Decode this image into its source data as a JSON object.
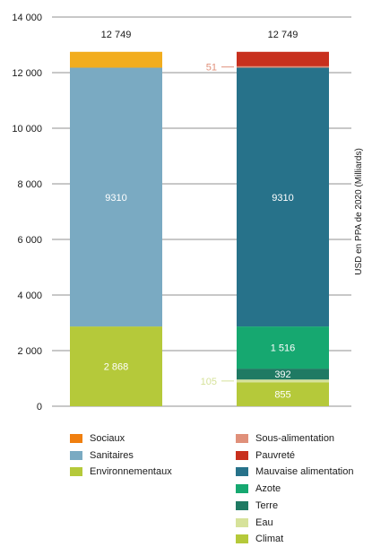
{
  "chart_data": {
    "type": "bar",
    "stacked": true,
    "ylabel": "USD en PPA de 2020 (Milliards)",
    "ylim": [
      0,
      14000
    ],
    "yticks": [
      0,
      2000,
      4000,
      6000,
      8000,
      10000,
      12000,
      14000
    ],
    "ytick_labels": [
      "0",
      "2 000",
      "4 000",
      "6 000",
      "8 000",
      "10 000",
      "12 000",
      "14 000"
    ],
    "grid": "horizontal",
    "legend_position": "bottom",
    "bars": [
      {
        "total_label": "12 749",
        "segments": [
          {
            "name": "Environnementaux",
            "value": 2868,
            "label": "2 868",
            "color": "#b5c93a"
          },
          {
            "name": "Sanitaires",
            "value": 9310,
            "label": "9310",
            "color": "#7aaac2"
          },
          {
            "name": "Sociaux",
            "value": 571,
            "label": "",
            "color": "#f2ad1e"
          }
        ]
      },
      {
        "total_label": "12 749",
        "segments": [
          {
            "name": "Climat",
            "value": 855,
            "label": "855",
            "color": "#b5c93a"
          },
          {
            "name": "Eau",
            "value": 105,
            "label": "105",
            "label_outside": true,
            "color": "#d6e29a"
          },
          {
            "name": "Terre",
            "value": 392,
            "label": "392",
            "color": "#1f7a63"
          },
          {
            "name": "Azote",
            "value": 1516,
            "label": "1 516",
            "color": "#16a870"
          },
          {
            "name": "Mauvaise alimentation",
            "value": 9310,
            "label": "9310",
            "color": "#27728a"
          },
          {
            "name": "Sous-alimentation",
            "value": 51,
            "label": "51",
            "label_outside": true,
            "color": "#e0907a"
          },
          {
            "name": "Pauvreté",
            "value": 520,
            "label": "",
            "color": "#c8301e"
          }
        ]
      }
    ],
    "legend_left": [
      {
        "label": "Sociaux",
        "color": "#f07f0f"
      },
      {
        "label": "Sanitaires",
        "color": "#7aaac2"
      },
      {
        "label": "Environnementaux",
        "color": "#b5c93a"
      }
    ],
    "legend_right": [
      {
        "label": "Sous-alimentation",
        "color": "#e0907a"
      },
      {
        "label": "Pauvreté",
        "color": "#c8301e"
      },
      {
        "label": "Mauvaise alimentation",
        "color": "#27728a"
      },
      {
        "label": "Azote",
        "color": "#16a870"
      },
      {
        "label": "Terre",
        "color": "#1f7a63"
      },
      {
        "label": "Eau",
        "color": "#d6e29a"
      },
      {
        "label": "Climat",
        "color": "#b5c93a"
      }
    ]
  }
}
